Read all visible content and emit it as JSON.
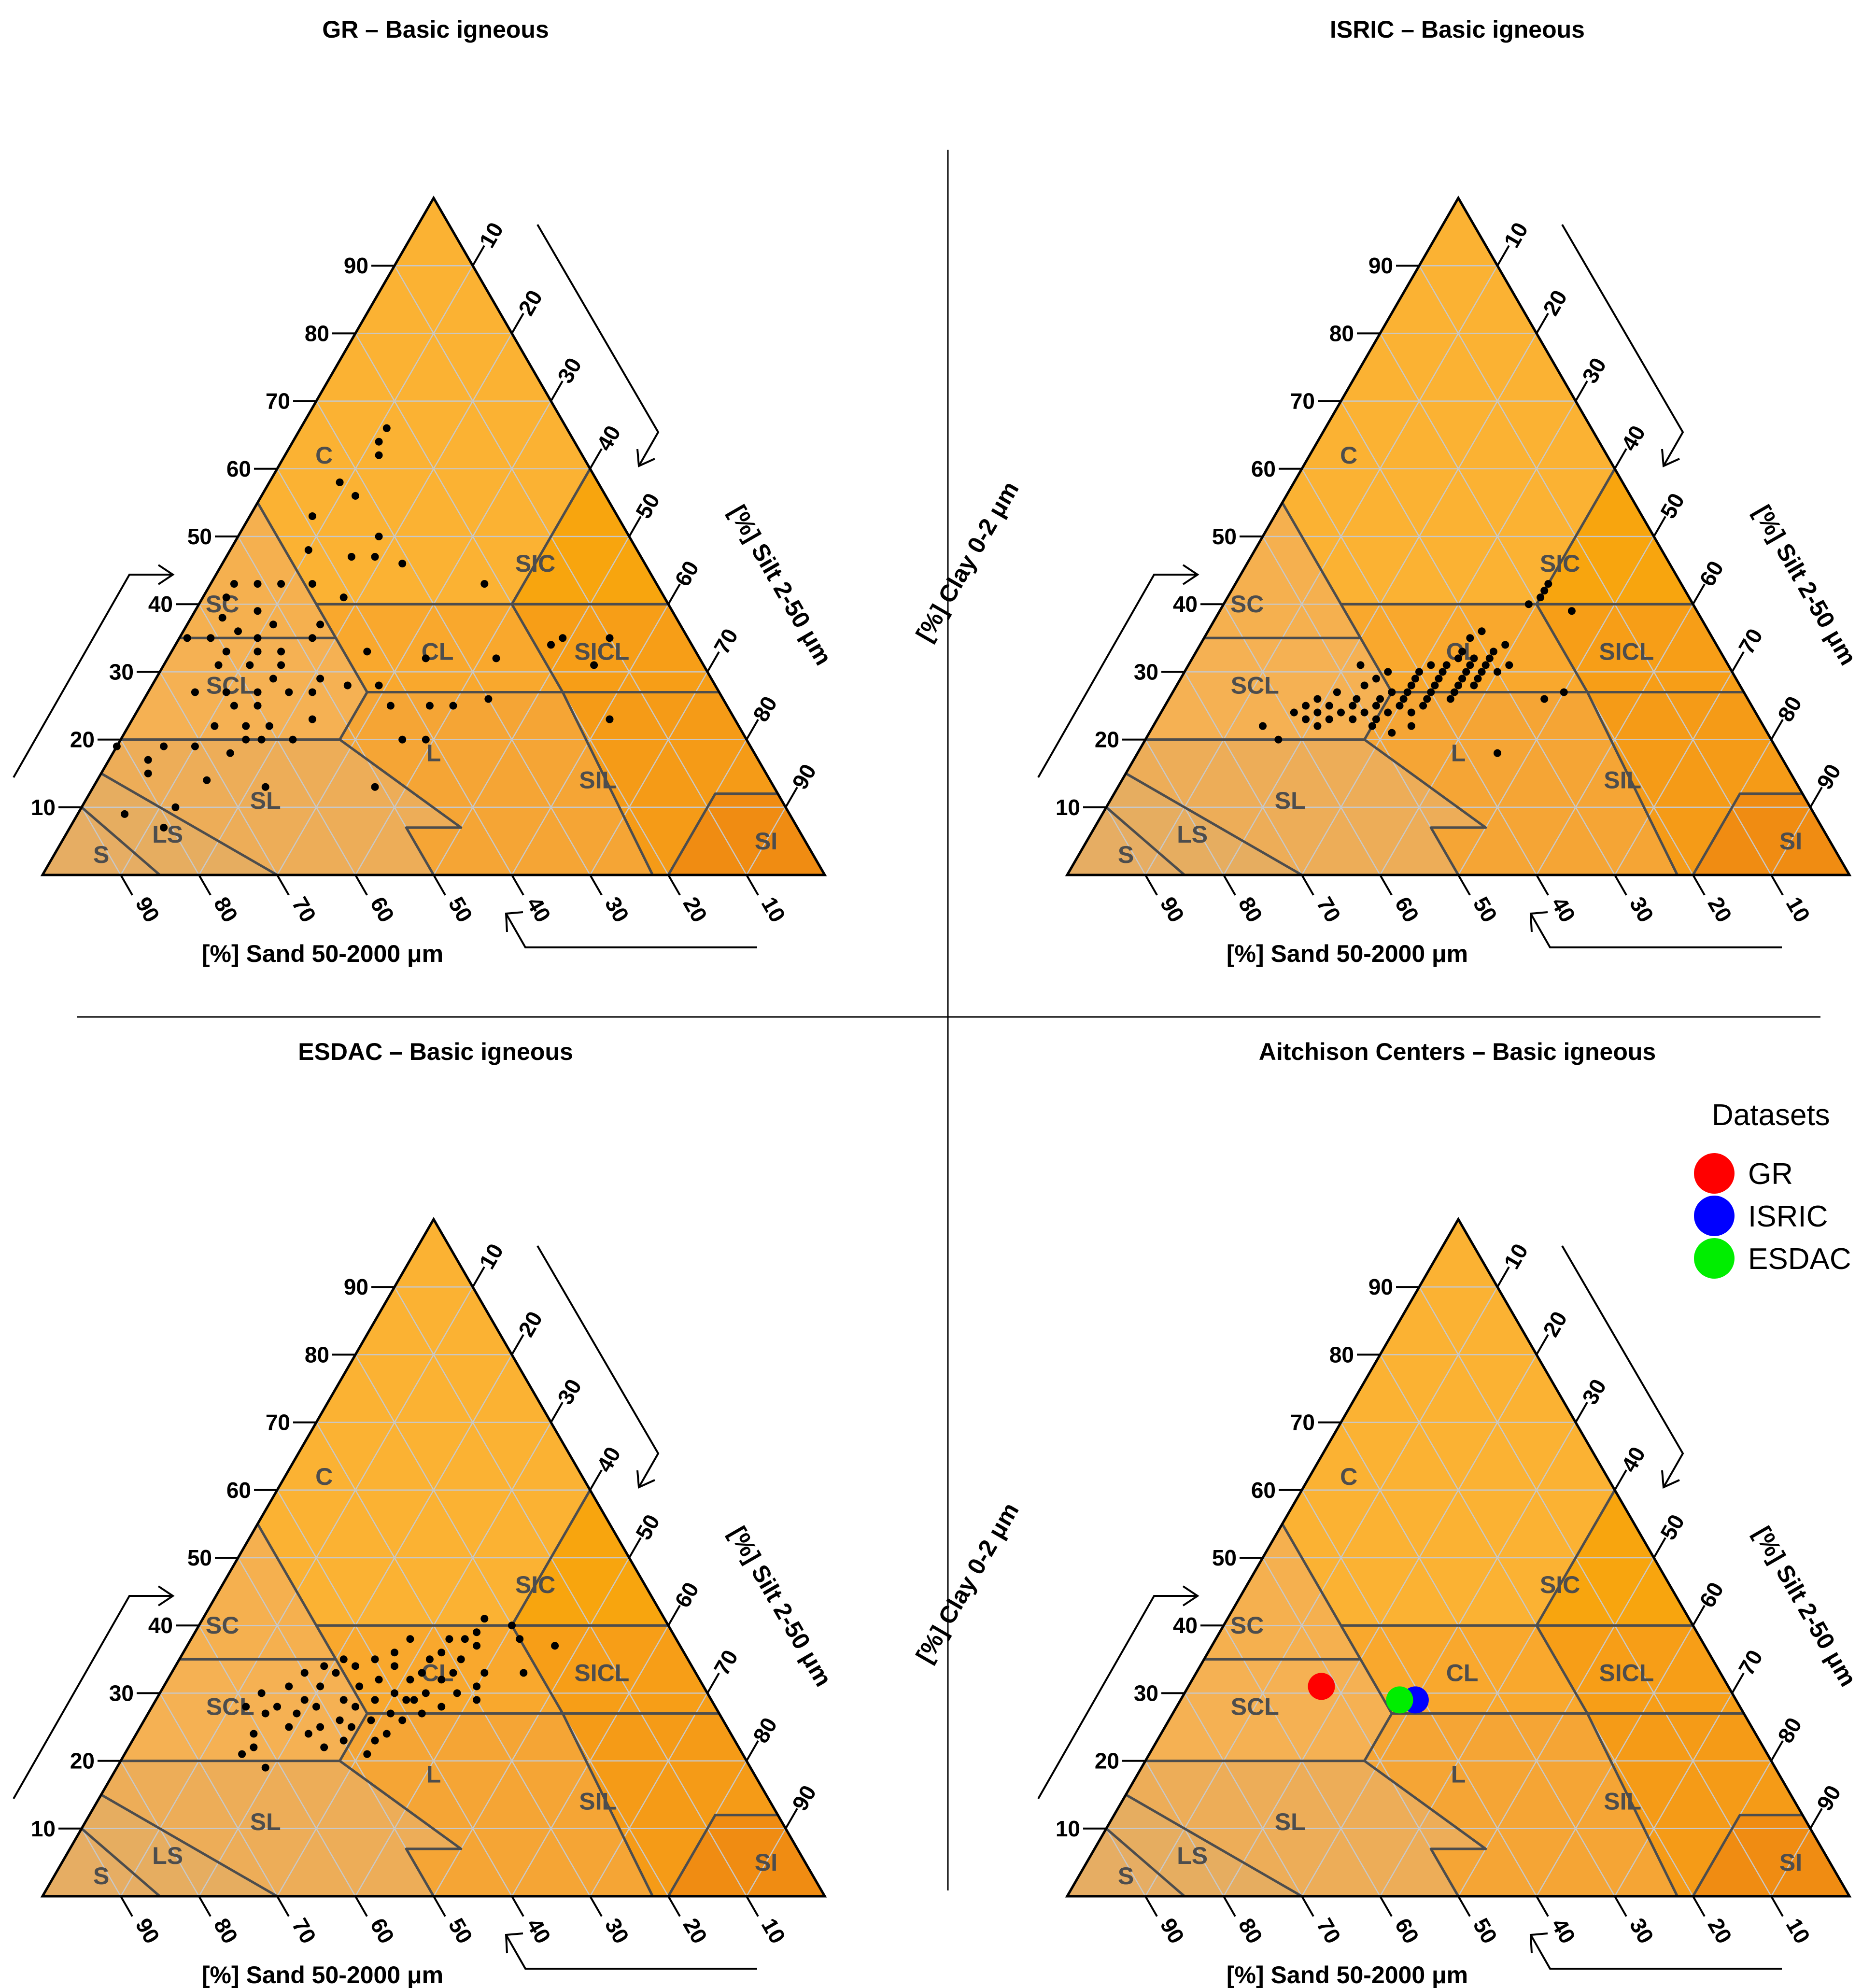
{
  "colors": {
    "point": "#000000",
    "grid": "#c8c8c8",
    "boundary": "#4d4d4d",
    "class_fill": {
      "S": "#e6ad63",
      "LS": "#e6ad60",
      "SL": "#edad58",
      "SCL": "#f5b153",
      "SC": "#f5b04f",
      "L": "#f5a535",
      "CL": "#f9a82d",
      "C": "#fbb233",
      "SIL": "#f59b17",
      "SICL": "#f79e17",
      "SIC": "#f8a50e",
      "SI": "#f08c12"
    },
    "legend": {
      "GR": "#ff0000",
      "ISRIC": "#0000ff",
      "ESDAC": "#00ee00"
    }
  },
  "axes": {
    "clay_label": "[%] Clay 0-2 μm",
    "silt_label": "[%] Silt 2-50 μm",
    "sand_label": "[%] Sand 50-2000 μm",
    "clay_ticks": [
      "10",
      "20",
      "30",
      "40",
      "50",
      "60",
      "70",
      "80",
      "90"
    ],
    "silt_ticks": [
      "10",
      "20",
      "30",
      "40",
      "50",
      "60",
      "70",
      "80",
      "90"
    ],
    "sand_ticks": [
      "90",
      "80",
      "70",
      "60",
      "50",
      "40",
      "30",
      "20",
      "10"
    ]
  },
  "classes": [
    "S",
    "LS",
    "SL",
    "SCL",
    "SC",
    "L",
    "CL",
    "C",
    "SIL",
    "SICL",
    "SIC",
    "SI"
  ],
  "legend": {
    "title": "Datasets",
    "items": [
      "GR",
      "ISRIC",
      "ESDAC"
    ]
  },
  "panels": [
    {
      "title": "GR – Basic igneous"
    },
    {
      "title": "ISRIC – Basic igneous"
    },
    {
      "title": "ESDAC – Basic igneous"
    },
    {
      "title": "Aitchison Centers – Basic igneous"
    }
  ],
  "chart_data": [
    {
      "type": "scatter",
      "subtype": "soil texture triangle",
      "title": "GR – Basic igneous",
      "xlabel": "[%] Sand 50-2000 μm",
      "ylabel": "[%] Clay 0-2 μm",
      "zlabel": "[%] Silt 2-50 μm",
      "points": [
        {
          "sand": 23,
          "clay": 66
        },
        {
          "sand": 25,
          "clay": 64
        },
        {
          "sand": 26,
          "clay": 62
        },
        {
          "sand": 33,
          "clay": 58
        },
        {
          "sand": 32,
          "clay": 56
        },
        {
          "sand": 39,
          "clay": 53
        },
        {
          "sand": 32,
          "clay": 50
        },
        {
          "sand": 42,
          "clay": 48
        },
        {
          "sand": 37,
          "clay": 47
        },
        {
          "sand": 34,
          "clay": 47
        },
        {
          "sand": 31,
          "clay": 46
        },
        {
          "sand": 22,
          "clay": 43
        },
        {
          "sand": 44,
          "clay": 43
        },
        {
          "sand": 48,
          "clay": 43
        },
        {
          "sand": 51,
          "clay": 43
        },
        {
          "sand": 54,
          "clay": 43
        },
        {
          "sand": 41,
          "clay": 41
        },
        {
          "sand": 56,
          "clay": 41
        },
        {
          "sand": 53,
          "clay": 39
        },
        {
          "sand": 58,
          "clay": 38
        },
        {
          "sand": 46,
          "clay": 37
        },
        {
          "sand": 52,
          "clay": 37
        },
        {
          "sand": 57,
          "clay": 36
        },
        {
          "sand": 10,
          "clay": 35
        },
        {
          "sand": 16,
          "clay": 35
        },
        {
          "sand": 64,
          "clay": 35
        },
        {
          "sand": 61,
          "clay": 35
        },
        {
          "sand": 55,
          "clay": 35
        },
        {
          "sand": 48,
          "clay": 35
        },
        {
          "sand": 18,
          "clay": 34
        },
        {
          "sand": 56,
          "clay": 33
        },
        {
          "sand": 60,
          "clay": 33
        },
        {
          "sand": 53,
          "clay": 33
        },
        {
          "sand": 42,
          "clay": 33
        },
        {
          "sand": 35,
          "clay": 32
        },
        {
          "sand": 26,
          "clay": 32
        },
        {
          "sand": 62,
          "clay": 31
        },
        {
          "sand": 58,
          "clay": 31
        },
        {
          "sand": 54,
          "clay": 31
        },
        {
          "sand": 14,
          "clay": 31
        },
        {
          "sand": 56,
          "clay": 29
        },
        {
          "sand": 50,
          "clay": 29
        },
        {
          "sand": 47,
          "clay": 28
        },
        {
          "sand": 43,
          "clay": 28
        },
        {
          "sand": 67,
          "clay": 27
        },
        {
          "sand": 63,
          "clay": 27
        },
        {
          "sand": 59,
          "clay": 27
        },
        {
          "sand": 55,
          "clay": 27
        },
        {
          "sand": 52,
          "clay": 27
        },
        {
          "sand": 30,
          "clay": 26
        },
        {
          "sand": 63,
          "clay": 25
        },
        {
          "sand": 60,
          "clay": 25
        },
        {
          "sand": 43,
          "clay": 25
        },
        {
          "sand": 38,
          "clay": 25
        },
        {
          "sand": 35,
          "clay": 25
        },
        {
          "sand": 16,
          "clay": 23
        },
        {
          "sand": 54,
          "clay": 23
        },
        {
          "sand": 60,
          "clay": 22
        },
        {
          "sand": 63,
          "clay": 22
        },
        {
          "sand": 67,
          "clay": 22
        },
        {
          "sand": 44,
          "clay": 20
        },
        {
          "sand": 41,
          "clay": 20
        },
        {
          "sand": 62,
          "clay": 20
        },
        {
          "sand": 58,
          "clay": 20
        },
        {
          "sand": 64,
          "clay": 20
        },
        {
          "sand": 71,
          "clay": 19
        },
        {
          "sand": 75,
          "clay": 19
        },
        {
          "sand": 81,
          "clay": 19
        },
        {
          "sand": 67,
          "clay": 18
        },
        {
          "sand": 78,
          "clay": 17
        },
        {
          "sand": 79,
          "clay": 15
        },
        {
          "sand": 72,
          "clay": 14
        },
        {
          "sand": 65,
          "clay": 13
        },
        {
          "sand": 51,
          "clay": 13
        },
        {
          "sand": 78,
          "clay": 10
        },
        {
          "sand": 85,
          "clay": 9
        },
        {
          "sand": 81,
          "clay": 7
        }
      ]
    },
    {
      "type": "scatter",
      "subtype": "soil texture triangle",
      "title": "ISRIC – Basic igneous",
      "xlabel": "[%] Sand 50-2000 μm",
      "ylabel": "[%] Clay 0-2 μm",
      "zlabel": "[%] Silt 2-50 μm",
      "points": [
        {
          "sand": 17,
          "clay": 43
        },
        {
          "sand": 18,
          "clay": 42
        },
        {
          "sand": 19,
          "clay": 41
        },
        {
          "sand": 16,
          "clay": 39
        },
        {
          "sand": 21,
          "clay": 40
        },
        {
          "sand": 29,
          "clay": 36
        },
        {
          "sand": 31,
          "clay": 35
        },
        {
          "sand": 27,
          "clay": 34
        },
        {
          "sand": 33,
          "clay": 33
        },
        {
          "sand": 29,
          "clay": 33
        },
        {
          "sand": 30,
          "clay": 32
        },
        {
          "sand": 32,
          "clay": 32
        },
        {
          "sand": 34,
          "clay": 32
        },
        {
          "sand": 28,
          "clay": 31
        },
        {
          "sand": 31,
          "clay": 31
        },
        {
          "sand": 33,
          "clay": 31
        },
        {
          "sand": 36,
          "clay": 31
        },
        {
          "sand": 38,
          "clay": 31
        },
        {
          "sand": 30,
          "clay": 30
        },
        {
          "sand": 32,
          "clay": 30
        },
        {
          "sand": 34,
          "clay": 30
        },
        {
          "sand": 37,
          "clay": 30
        },
        {
          "sand": 40,
          "clay": 30
        },
        {
          "sand": 44,
          "clay": 30
        },
        {
          "sand": 33,
          "clay": 29
        },
        {
          "sand": 35,
          "clay": 29
        },
        {
          "sand": 38,
          "clay": 29
        },
        {
          "sand": 41,
          "clay": 29
        },
        {
          "sand": 46,
          "clay": 29
        },
        {
          "sand": 34,
          "clay": 28
        },
        {
          "sand": 36,
          "clay": 28
        },
        {
          "sand": 39,
          "clay": 28
        },
        {
          "sand": 42,
          "clay": 28
        },
        {
          "sand": 48,
          "clay": 28
        },
        {
          "sand": 37,
          "clay": 27
        },
        {
          "sand": 40,
          "clay": 27
        },
        {
          "sand": 43,
          "clay": 27
        },
        {
          "sand": 45,
          "clay": 27
        },
        {
          "sand": 52,
          "clay": 27
        },
        {
          "sand": 38,
          "clay": 26
        },
        {
          "sand": 41,
          "clay": 26
        },
        {
          "sand": 44,
          "clay": 26
        },
        {
          "sand": 47,
          "clay": 26
        },
        {
          "sand": 50,
          "clay": 26
        },
        {
          "sand": 55,
          "clay": 26
        },
        {
          "sand": 42,
          "clay": 25
        },
        {
          "sand": 45,
          "clay": 25
        },
        {
          "sand": 48,
          "clay": 25
        },
        {
          "sand": 51,
          "clay": 25
        },
        {
          "sand": 54,
          "clay": 25
        },
        {
          "sand": 57,
          "clay": 25
        },
        {
          "sand": 44,
          "clay": 24
        },
        {
          "sand": 47,
          "clay": 24
        },
        {
          "sand": 50,
          "clay": 24
        },
        {
          "sand": 53,
          "clay": 24
        },
        {
          "sand": 56,
          "clay": 24
        },
        {
          "sand": 59,
          "clay": 24
        },
        {
          "sand": 49,
          "clay": 23
        },
        {
          "sand": 52,
          "clay": 23
        },
        {
          "sand": 55,
          "clay": 23
        },
        {
          "sand": 58,
          "clay": 23
        },
        {
          "sand": 57,
          "clay": 22
        },
        {
          "sand": 50,
          "clay": 22
        },
        {
          "sand": 23,
          "clay": 27
        },
        {
          "sand": 26,
          "clay": 26
        },
        {
          "sand": 47,
          "clay": 31
        },
        {
          "sand": 48,
          "clay": 21
        },
        {
          "sand": 64,
          "clay": 22
        },
        {
          "sand": 63,
          "clay": 20
        },
        {
          "sand": 36,
          "clay": 18
        },
        {
          "sand": 45,
          "clay": 22
        }
      ]
    },
    {
      "type": "scatter",
      "subtype": "soil texture triangle",
      "title": "ESDAC – Basic igneous",
      "xlabel": "[%] Sand 50-2000 μm",
      "ylabel": "[%] Clay 0-2 μm",
      "zlabel": "[%] Silt 2-50 μm",
      "points": [
        {
          "sand": 23,
          "clay": 41
        },
        {
          "sand": 20,
          "clay": 40
        },
        {
          "sand": 25,
          "clay": 39
        },
        {
          "sand": 27,
          "clay": 38
        },
        {
          "sand": 29,
          "clay": 38
        },
        {
          "sand": 20,
          "clay": 38
        },
        {
          "sand": 16,
          "clay": 37
        },
        {
          "sand": 31,
          "clay": 36
        },
        {
          "sand": 26,
          "clay": 37
        },
        {
          "sand": 37,
          "clay": 36
        },
        {
          "sand": 40,
          "clay": 35
        },
        {
          "sand": 44,
          "clay": 35
        },
        {
          "sand": 33,
          "clay": 35
        },
        {
          "sand": 29,
          "clay": 35
        },
        {
          "sand": 47,
          "clay": 34
        },
        {
          "sand": 43,
          "clay": 34
        },
        {
          "sand": 38,
          "clay": 34
        },
        {
          "sand": 35,
          "clay": 33
        },
        {
          "sand": 31,
          "clay": 33
        },
        {
          "sand": 27,
          "clay": 33
        },
        {
          "sand": 22,
          "clay": 33
        },
        {
          "sand": 50,
          "clay": 33
        },
        {
          "sand": 46,
          "clay": 33
        },
        {
          "sand": 41,
          "clay": 32
        },
        {
          "sand": 37,
          "clay": 32
        },
        {
          "sand": 33,
          "clay": 32
        },
        {
          "sand": 29,
          "clay": 31
        },
        {
          "sand": 53,
          "clay": 31
        },
        {
          "sand": 49,
          "clay": 31
        },
        {
          "sand": 44,
          "clay": 31
        },
        {
          "sand": 40,
          "clay": 30
        },
        {
          "sand": 36,
          "clay": 30
        },
        {
          "sand": 32,
          "clay": 30
        },
        {
          "sand": 57,
          "clay": 30
        },
        {
          "sand": 52,
          "clay": 29
        },
        {
          "sand": 47,
          "clay": 29
        },
        {
          "sand": 43,
          "clay": 29
        },
        {
          "sand": 39,
          "clay": 29
        },
        {
          "sand": 35,
          "clay": 28
        },
        {
          "sand": 60,
          "clay": 28
        },
        {
          "sand": 56,
          "clay": 28
        },
        {
          "sand": 51,
          "clay": 28
        },
        {
          "sand": 46,
          "clay": 28
        },
        {
          "sand": 42,
          "clay": 27
        },
        {
          "sand": 38,
          "clay": 27
        },
        {
          "sand": 58,
          "clay": 27
        },
        {
          "sand": 54,
          "clay": 27
        },
        {
          "sand": 49,
          "clay": 26
        },
        {
          "sand": 45,
          "clay": 26
        },
        {
          "sand": 41,
          "clay": 26
        },
        {
          "sand": 56,
          "clay": 25
        },
        {
          "sand": 52,
          "clay": 25
        },
        {
          "sand": 48,
          "clay": 25
        },
        {
          "sand": 44,
          "clay": 24
        },
        {
          "sand": 54,
          "clay": 24
        },
        {
          "sand": 50,
          "clay": 23
        },
        {
          "sand": 46,
          "clay": 23
        },
        {
          "sand": 38,
          "clay": 29
        },
        {
          "sand": 61,
          "clay": 24
        },
        {
          "sand": 62,
          "clay": 22
        },
        {
          "sand": 64,
          "clay": 21
        },
        {
          "sand": 62,
          "clay": 19
        },
        {
          "sand": 48,
          "clay": 21
        },
        {
          "sand": 53,
          "clay": 22
        },
        {
          "sand": 30,
          "clay": 29
        },
        {
          "sand": 34,
          "clay": 38
        }
      ]
    },
    {
      "type": "scatter",
      "subtype": "soil texture triangle",
      "title": "Aitchison Centers – Basic igneous",
      "xlabel": "[%] Sand 50-2000 μm",
      "ylabel": "[%] Clay 0-2 μm",
      "zlabel": "[%] Silt 2-50 μm",
      "legend_title": "Datasets",
      "legend_position": "top-right",
      "series": [
        {
          "name": "GR",
          "sand": 52,
          "clay": 31,
          "color": "#ff0000"
        },
        {
          "name": "ISRIC",
          "sand": 41,
          "clay": 29,
          "color": "#0000ff"
        },
        {
          "name": "ESDAC",
          "sand": 43,
          "clay": 29,
          "color": "#00ee00"
        }
      ]
    }
  ]
}
